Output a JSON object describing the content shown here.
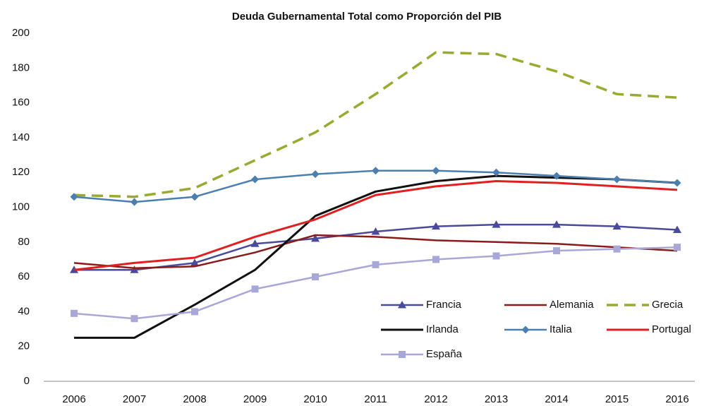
{
  "chart_data": {
    "type": "line",
    "title": "Deuda Gubernamental Total como Proporción del PIB",
    "categories": [
      "2006",
      "2007",
      "2008",
      "2009",
      "2010",
      "2011",
      "2012",
      "2013",
      "2014",
      "2015",
      "2016"
    ],
    "ylim": [
      0,
      200
    ],
    "yticks": [
      0,
      20,
      40,
      60,
      80,
      100,
      120,
      140,
      160,
      180,
      200
    ],
    "grid": false,
    "legend": "lower right",
    "series": [
      {
        "name": "Francia",
        "color": "#4a4a9a",
        "marker": "triangle",
        "dash": false,
        "values": [
          64,
          64,
          68,
          79,
          82,
          86,
          89,
          90,
          90,
          89,
          87
        ]
      },
      {
        "name": "Alemania",
        "color": "#8b1a1a",
        "marker": "none",
        "dash": false,
        "values": [
          68,
          65,
          66,
          74,
          84,
          83,
          81,
          80,
          79,
          77,
          75
        ]
      },
      {
        "name": "Grecia",
        "color": "#9aaa30",
        "marker": "none",
        "dash": true,
        "values": [
          107,
          106,
          111,
          127,
          143,
          165,
          189,
          188,
          178,
          165,
          163
        ]
      },
      {
        "name": "Irlanda",
        "color": "#111111",
        "marker": "none",
        "dash": false,
        "values": [
          25,
          25,
          44,
          64,
          95,
          109,
          115,
          118,
          117,
          116,
          114
        ]
      },
      {
        "name": "Italia",
        "color": "#4a7fb0",
        "marker": "diamond",
        "dash": false,
        "values": [
          106,
          103,
          106,
          116,
          119,
          121,
          121,
          120,
          118,
          116,
          114
        ]
      },
      {
        "name": "Portugal",
        "color": "#e02020",
        "marker": "none",
        "dash": false,
        "values": [
          64,
          68,
          71,
          83,
          93,
          107,
          112,
          115,
          114,
          112,
          110
        ]
      },
      {
        "name": "España",
        "color": "#a8a8d8",
        "marker": "square",
        "dash": false,
        "values": [
          39,
          36,
          40,
          53,
          60,
          67,
          70,
          72,
          75,
          76,
          77
        ]
      }
    ]
  }
}
